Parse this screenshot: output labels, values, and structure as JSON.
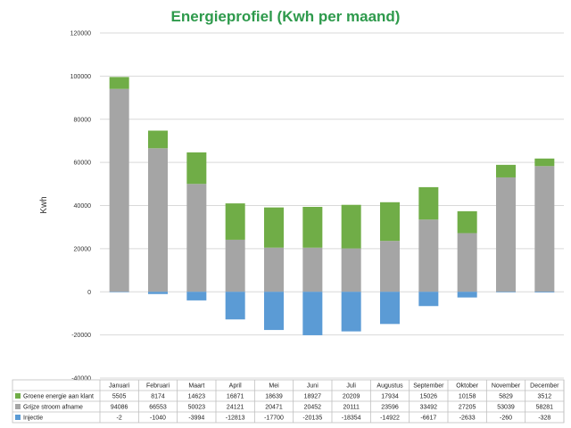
{
  "chart_data": {
    "type": "bar",
    "stacked": true,
    "title": "Energieprofiel (Kwh per maand)",
    "ylabel": "Kwh",
    "ylim": [
      -40000,
      120000
    ],
    "yticks": [
      -40000,
      -20000,
      0,
      20000,
      40000,
      60000,
      80000,
      100000,
      120000
    ],
    "grid": true,
    "legend": "table-bottom",
    "categories": [
      "Januari",
      "Februari",
      "Maart",
      "April",
      "Mei",
      "Juni",
      "Juli",
      "Augustus",
      "September",
      "Oktober",
      "November",
      "December"
    ],
    "series": [
      {
        "name": "Groene energie aan klant",
        "color": "#70ad47",
        "values": [
          5505,
          8174,
          14623,
          16871,
          18639,
          18927,
          20209,
          17934,
          15026,
          10158,
          5829,
          3512
        ]
      },
      {
        "name": "Grijze stroom afname",
        "color": "#a5a5a5",
        "values": [
          94086,
          66553,
          50023,
          24121,
          20471,
          20452,
          20111,
          23596,
          33492,
          27205,
          53039,
          58281
        ]
      },
      {
        "name": "Injectie",
        "color": "#5b9bd5",
        "values": [
          -2,
          -1040,
          -3994,
          -12813,
          -17700,
          -20135,
          -18354,
          -14922,
          -6617,
          -2633,
          -260,
          -328
        ]
      }
    ]
  }
}
